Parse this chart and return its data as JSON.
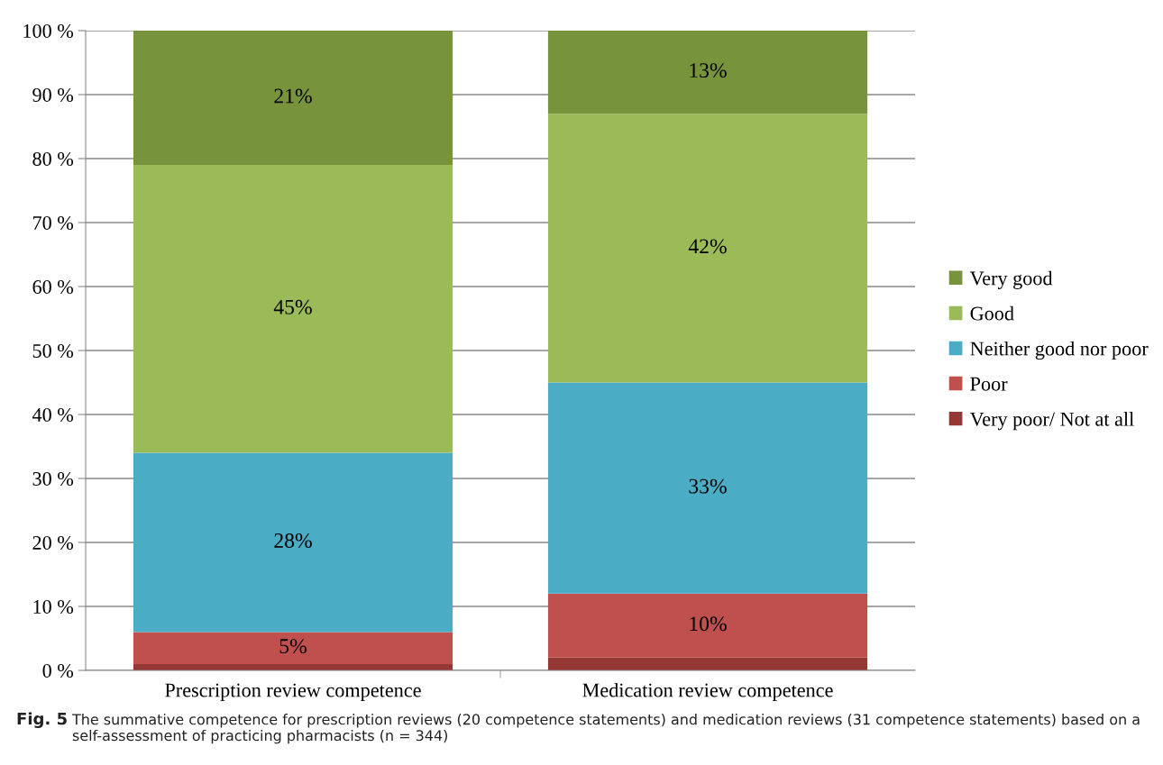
{
  "chart_data": {
    "type": "bar",
    "stacked": true,
    "categories": [
      "Prescription review competence",
      "Medication review competence"
    ],
    "series": [
      {
        "name": "Very poor/ Not at all",
        "color": "#953735",
        "values": [
          1,
          2
        ],
        "value_labels": [
          null,
          null
        ]
      },
      {
        "name": "Poor",
        "color": "#c0504d",
        "values": [
          5,
          10
        ],
        "value_labels": [
          "5%",
          "10%"
        ]
      },
      {
        "name": "Neither good nor poor",
        "color": "#4bacc6",
        "values": [
          28,
          33
        ],
        "value_labels": [
          "28%",
          "33%"
        ]
      },
      {
        "name": "Good",
        "color": "#9bbb59",
        "values": [
          45,
          42
        ],
        "value_labels": [
          "45%",
          "42%"
        ]
      },
      {
        "name": "Very good",
        "color": "#77933c",
        "values": [
          21,
          13
        ],
        "value_labels": [
          "21%",
          "13%"
        ]
      }
    ],
    "ylim": [
      0,
      100
    ],
    "yticks": [
      {
        "value": 0,
        "label": "0 %"
      },
      {
        "value": 10,
        "label": "10 %"
      },
      {
        "value": 20,
        "label": "20 %"
      },
      {
        "value": 30,
        "label": "30 %"
      },
      {
        "value": 40,
        "label": "40 %"
      },
      {
        "value": 50,
        "label": "50 %"
      },
      {
        "value": 60,
        "label": "60 %"
      },
      {
        "value": 70,
        "label": "70 %"
      },
      {
        "value": 80,
        "label": "80 %"
      },
      {
        "value": 90,
        "label": "90 %"
      },
      {
        "value": 100,
        "label": "100 %"
      }
    ],
    "grid": "y",
    "legend": "right",
    "annotations": [
      "Fig. 5",
      "The summative competence for prescription reviews (20 competence statements) and medication reviews (31 competence statements) based on a self-assessment of practicing pharmacists (n = 344)"
    ]
  }
}
